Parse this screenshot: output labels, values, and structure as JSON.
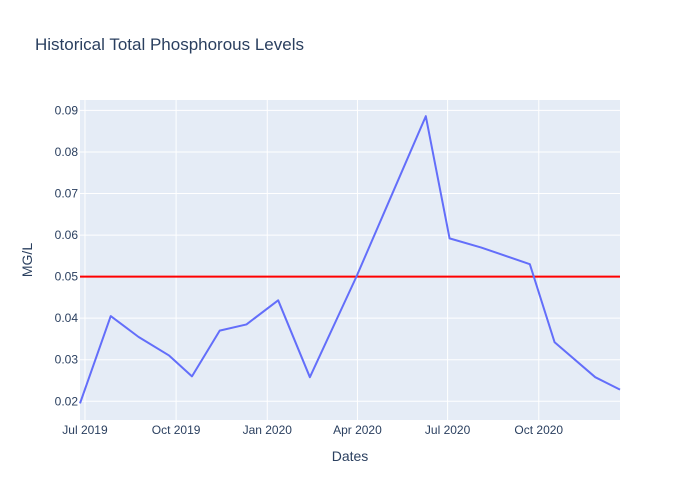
{
  "chart_data": {
    "type": "line",
    "title": "Historical Total Phosphorous Levels",
    "xlabel": "Dates",
    "ylabel": "MG/L",
    "x_ticks": [
      {
        "label": "Jul 2019",
        "date": "2019-07-01"
      },
      {
        "label": "Oct 2019",
        "date": "2019-10-01"
      },
      {
        "label": "Jan 2020",
        "date": "2020-01-01"
      },
      {
        "label": "Apr 2020",
        "date": "2020-04-01"
      },
      {
        "label": "Jul 2020",
        "date": "2020-07-01"
      },
      {
        "label": "Oct 2020",
        "date": "2020-10-01"
      }
    ],
    "y_ticks": [
      "0.02",
      "0.03",
      "0.04",
      "0.05",
      "0.06",
      "0.07",
      "0.08",
      "0.09"
    ],
    "xlim": [
      "2019-06-26",
      "2020-12-22"
    ],
    "ylim": [
      0.0155,
      0.0925
    ],
    "grid": true,
    "series": [
      {
        "color": "#636efa",
        "x": [
          "2019-06-26",
          "2019-07-27",
          "2019-08-24",
          "2019-09-24",
          "2019-10-17",
          "2019-11-14",
          "2019-12-11",
          "2020-01-12",
          "2020-02-13",
          "2020-03-31",
          "2020-06-09",
          "2020-07-03",
          "2020-08-04",
          "2020-09-22",
          "2020-10-17",
          "2020-11-27",
          "2020-12-22"
        ],
        "y": [
          0.0195,
          0.0405,
          0.0355,
          0.031,
          0.026,
          0.037,
          0.0385,
          0.0443,
          0.0258,
          0.05,
          0.0886,
          0.0592,
          0.057,
          0.053,
          0.0342,
          0.0258,
          0.0228
        ]
      }
    ],
    "threshold": {
      "value": 0.05,
      "color": "#ff0000"
    },
    "colors": {
      "plot_bg": "#e5ecf6",
      "grid": "#ffffff",
      "text": "#2a3f5f"
    }
  }
}
